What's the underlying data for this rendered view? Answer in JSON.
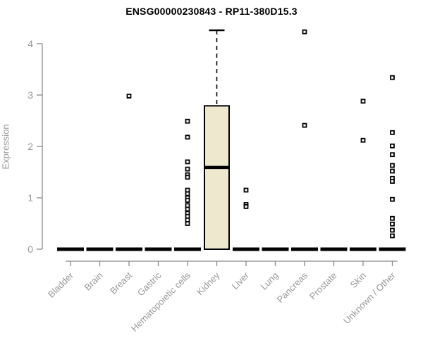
{
  "chart_data": {
    "type": "boxplot",
    "title": "ENSG00000230843 - RP11-380D15.3",
    "xlabel": "",
    "ylabel": "Expression",
    "ylim": [
      0,
      4.3
    ],
    "yticks": [
      "0",
      "1",
      "2",
      "3",
      "4"
    ],
    "grid": false,
    "legend": "none",
    "categories": [
      "Bladder",
      "Brain",
      "Breast",
      "Gastric",
      "Hematopoietic cells",
      "Kidney",
      "Liver",
      "Lung",
      "Pancreas",
      "Prostate",
      "Skin",
      "Unknown / Other"
    ],
    "series": [
      {
        "name": "Bladder",
        "q1": 0,
        "median": 0,
        "q3": 0,
        "whisker_low": 0,
        "whisker_high": 0,
        "outliers": []
      },
      {
        "name": "Brain",
        "q1": 0,
        "median": 0,
        "q3": 0,
        "whisker_low": 0,
        "whisker_high": 0,
        "outliers": []
      },
      {
        "name": "Breast",
        "q1": 0,
        "median": 0,
        "q3": 0,
        "whisker_low": 0,
        "whisker_high": 0,
        "outliers": [
          2.98
        ]
      },
      {
        "name": "Gastric",
        "q1": 0,
        "median": 0,
        "q3": 0,
        "whisker_low": 0,
        "whisker_high": 0,
        "outliers": []
      },
      {
        "name": "Hematopoietic cells",
        "q1": 0,
        "median": 0,
        "q3": 0,
        "whisker_low": 0,
        "whisker_high": 0,
        "outliers": [
          2.49,
          2.18,
          1.7,
          1.56,
          1.45,
          1.4,
          1.15,
          1.08,
          1.0,
          0.95,
          0.85,
          0.78,
          0.7,
          0.64,
          0.57,
          0.5
        ]
      },
      {
        "name": "Kidney",
        "q1": 0,
        "median": 1.59,
        "q3": 2.79,
        "whisker_low": 0,
        "whisker_high": 4.26,
        "outliers": []
      },
      {
        "name": "Liver",
        "q1": 0,
        "median": 0,
        "q3": 0,
        "whisker_low": 0,
        "whisker_high": 0,
        "outliers": [
          1.15,
          0.87,
          0.83
        ]
      },
      {
        "name": "Lung",
        "q1": 0,
        "median": 0,
        "q3": 0,
        "whisker_low": 0,
        "whisker_high": 0,
        "outliers": []
      },
      {
        "name": "Pancreas",
        "q1": 0,
        "median": 0,
        "q3": 0,
        "whisker_low": 0,
        "whisker_high": 0,
        "outliers": [
          4.23,
          2.41
        ]
      },
      {
        "name": "Prostate",
        "q1": 0,
        "median": 0,
        "q3": 0,
        "whisker_low": 0,
        "whisker_high": 0,
        "outliers": []
      },
      {
        "name": "Skin",
        "q1": 0,
        "median": 0,
        "q3": 0,
        "whisker_low": 0,
        "whisker_high": 0,
        "outliers": [
          2.88,
          2.12
        ]
      },
      {
        "name": "Unknown / Other",
        "q1": 0,
        "median": 0,
        "q3": 0,
        "whisker_low": 0,
        "whisker_high": 0,
        "outliers": [
          3.34,
          2.27,
          2.01,
          1.84,
          1.63,
          1.52,
          1.38,
          1.32,
          0.97,
          0.6,
          0.49,
          0.37,
          0.26
        ]
      }
    ],
    "colors": {
      "box_fill": "#EDE8CE",
      "box_border": "#000000",
      "median": "#000000",
      "outlier": "#000000",
      "axis_line": "#8a8a8a",
      "tick_text": "#979797",
      "title_text": "#000000",
      "background": "#ffffff"
    }
  }
}
